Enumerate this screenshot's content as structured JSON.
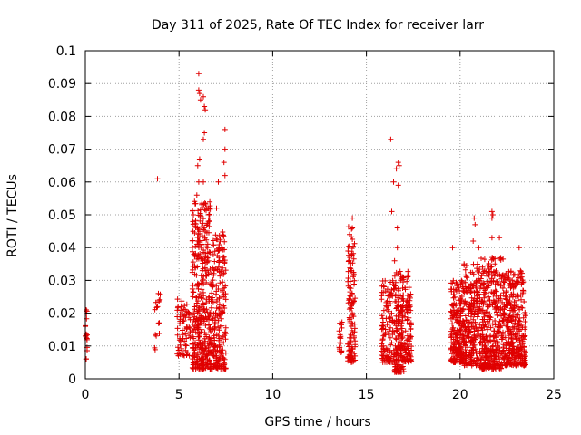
{
  "chart_data": {
    "type": "scatter",
    "title": "Day 311 of 2025, Rate Of TEC Index for receiver larr",
    "xlabel": "GPS time / hours",
    "ylabel": "ROTI / TECUs",
    "xlim": [
      0,
      25
    ],
    "ylim": [
      0,
      0.1
    ],
    "xticks": [
      "0",
      "5",
      "10",
      "15",
      "20",
      "25"
    ],
    "yticks": [
      "0",
      "0.01",
      "0.02",
      "0.03",
      "0.04",
      "0.05",
      "0.06",
      "0.07",
      "0.08",
      "0.09",
      "0.1"
    ],
    "grid": true,
    "marker": "plus",
    "color": "#e00000",
    "clusters": [
      {
        "x_range": [
          0.0,
          0.1
        ],
        "y_range": [
          0.006,
          0.022
        ],
        "n": 14
      },
      {
        "x_range": [
          3.7,
          4.0
        ],
        "y_range": [
          0.008,
          0.027
        ],
        "n": 14
      },
      {
        "x_range": [
          4.9,
          5.6
        ],
        "y_range": [
          0.007,
          0.025
        ],
        "n": 70
      },
      {
        "x_range": [
          5.7,
          6.7
        ],
        "y_range": [
          0.003,
          0.055
        ],
        "n": 380
      },
      {
        "x_range": [
          6.7,
          7.5
        ],
        "y_range": [
          0.003,
          0.045
        ],
        "n": 220
      },
      {
        "x_range": [
          13.5,
          13.7
        ],
        "y_range": [
          0.008,
          0.02
        ],
        "n": 20
      },
      {
        "x_range": [
          14.0,
          14.4
        ],
        "y_range": [
          0.005,
          0.047
        ],
        "n": 120
      },
      {
        "x_range": [
          15.8,
          16.5
        ],
        "y_range": [
          0.005,
          0.03
        ],
        "n": 120
      },
      {
        "x_range": [
          16.5,
          17.0
        ],
        "y_range": [
          0.002,
          0.035
        ],
        "n": 160
      },
      {
        "x_range": [
          17.0,
          17.4
        ],
        "y_range": [
          0.005,
          0.033
        ],
        "n": 90
      },
      {
        "x_range": [
          19.5,
          20.2
        ],
        "y_range": [
          0.005,
          0.03
        ],
        "n": 220
      },
      {
        "x_range": [
          20.2,
          21.0
        ],
        "y_range": [
          0.004,
          0.035
        ],
        "n": 220
      },
      {
        "x_range": [
          21.0,
          22.3
        ],
        "y_range": [
          0.003,
          0.037
        ],
        "n": 360
      },
      {
        "x_range": [
          22.3,
          23.5
        ],
        "y_range": [
          0.004,
          0.033
        ],
        "n": 330
      }
    ],
    "points": [
      [
        0.0,
        0.016
      ],
      [
        0.0,
        0.013
      ],
      [
        0.05,
        0.021
      ],
      [
        3.85,
        0.061
      ],
      [
        3.9,
        0.026
      ],
      [
        3.85,
        0.022
      ],
      [
        6.05,
        0.093
      ],
      [
        6.05,
        0.088
      ],
      [
        6.1,
        0.087
      ],
      [
        6.15,
        0.085
      ],
      [
        6.35,
        0.083
      ],
      [
        6.4,
        0.082
      ],
      [
        6.3,
        0.086
      ],
      [
        6.35,
        0.075
      ],
      [
        6.3,
        0.073
      ],
      [
        7.45,
        0.076
      ],
      [
        7.45,
        0.07
      ],
      [
        7.4,
        0.066
      ],
      [
        7.45,
        0.062
      ],
      [
        6.0,
        0.065
      ],
      [
        6.05,
        0.06
      ],
      [
        6.3,
        0.06
      ],
      [
        5.95,
        0.056
      ],
      [
        6.1,
        0.067
      ],
      [
        7.1,
        0.06
      ],
      [
        14.25,
        0.049
      ],
      [
        14.25,
        0.046
      ],
      [
        14.1,
        0.044
      ],
      [
        16.3,
        0.073
      ],
      [
        16.7,
        0.066
      ],
      [
        16.75,
        0.065
      ],
      [
        16.6,
        0.064
      ],
      [
        16.7,
        0.059
      ],
      [
        16.45,
        0.06
      ],
      [
        16.35,
        0.051
      ],
      [
        16.65,
        0.046
      ],
      [
        16.65,
        0.04
      ],
      [
        16.5,
        0.036
      ],
      [
        20.75,
        0.049
      ],
      [
        20.8,
        0.047
      ],
      [
        21.7,
        0.051
      ],
      [
        21.75,
        0.05
      ],
      [
        21.7,
        0.049
      ],
      [
        21.7,
        0.043
      ],
      [
        23.15,
        0.04
      ],
      [
        19.6,
        0.04
      ],
      [
        20.7,
        0.042
      ],
      [
        21.0,
        0.04
      ],
      [
        22.1,
        0.043
      ],
      [
        5.55,
        0.02
      ],
      [
        5.6,
        0.018
      ],
      [
        4.95,
        0.022
      ],
      [
        7.0,
        0.052
      ],
      [
        6.6,
        0.05
      ],
      [
        6.4,
        0.045
      ]
    ]
  }
}
